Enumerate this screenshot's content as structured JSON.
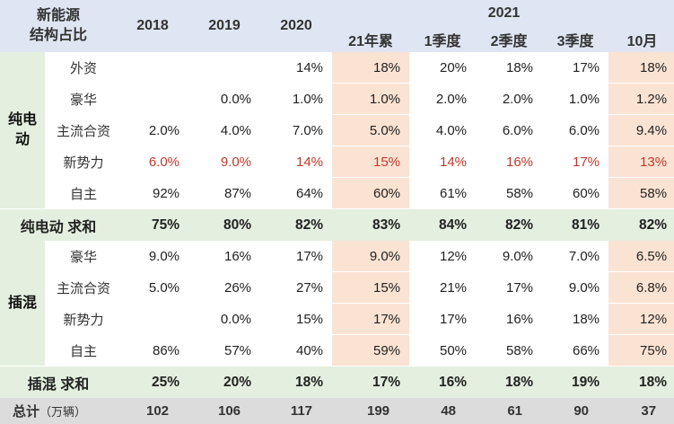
{
  "header": {
    "title_line1": "新能源",
    "title_line2": "结构占比",
    "years": [
      "2018",
      "2019",
      "2020"
    ],
    "group_year": "2021",
    "periods": [
      "21年累",
      "1季度",
      "2季度",
      "3季度",
      "10月"
    ]
  },
  "groups": [
    {
      "label": "纯电动",
      "label_lines": [
        "纯电",
        "动"
      ],
      "rows": [
        {
          "label": "外资",
          "values": [
            "",
            "",
            "14%",
            "18%",
            "20%",
            "18%",
            "17%",
            "18%"
          ],
          "red": false
        },
        {
          "label": "豪华",
          "values": [
            "",
            "0.0%",
            "1.0%",
            "1.0%",
            "2.0%",
            "2.0%",
            "1.0%",
            "1.2%"
          ],
          "red": false
        },
        {
          "label": "主流合资",
          "values": [
            "2.0%",
            "4.0%",
            "7.0%",
            "5.0%",
            "4.0%",
            "6.0%",
            "6.0%",
            "9.4%"
          ],
          "red": false
        },
        {
          "label": "新势力",
          "values": [
            "6.0%",
            "9.0%",
            "14%",
            "15%",
            "14%",
            "16%",
            "17%",
            "13%"
          ],
          "red": true
        },
        {
          "label": "自主",
          "values": [
            "92%",
            "87%",
            "64%",
            "60%",
            "61%",
            "58%",
            "60%",
            "58%"
          ],
          "red": false
        }
      ],
      "sum_label": "纯电动 求和",
      "sum_values": [
        "75%",
        "80%",
        "82%",
        "83%",
        "84%",
        "82%",
        "81%",
        "82%"
      ]
    },
    {
      "label": "插混",
      "label_lines": [
        "插混",
        ""
      ],
      "rows": [
        {
          "label": "豪华",
          "values": [
            "9.0%",
            "16%",
            "17%",
            "9.0%",
            "12%",
            "9.0%",
            "7.0%",
            "6.5%"
          ],
          "red": false
        },
        {
          "label": "主流合资",
          "values": [
            "5.0%",
            "26%",
            "27%",
            "15%",
            "21%",
            "17%",
            "9.0%",
            "6.8%"
          ],
          "red": false
        },
        {
          "label": "新势力",
          "values": [
            "",
            "0.0%",
            "15%",
            "17%",
            "17%",
            "16%",
            "18%",
            "12%"
          ],
          "red": false
        },
        {
          "label": "自主",
          "values": [
            "86%",
            "57%",
            "40%",
            "59%",
            "50%",
            "58%",
            "66%",
            "75%"
          ],
          "red": false
        }
      ],
      "sum_label": "插混 求和",
      "sum_values": [
        "25%",
        "20%",
        "18%",
        "17%",
        "16%",
        "18%",
        "19%",
        "18%"
      ]
    }
  ],
  "total": {
    "label": "总计",
    "unit": "（万辆）",
    "values": [
      "102",
      "106",
      "117",
      "199",
      "48",
      "61",
      "90",
      "37"
    ]
  },
  "colors": {
    "header_bg": "#dfe5f2",
    "group_bg": "#e4efdf",
    "highlight_bg": "#fbe3d3",
    "total_bg": "#dcdcdc",
    "red_text": "#c0392b"
  }
}
